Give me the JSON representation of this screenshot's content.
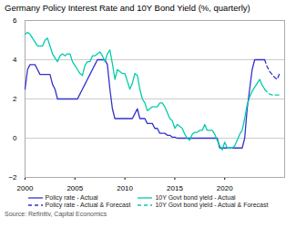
{
  "chart_data": {
    "type": "line",
    "title": "Germany Policy Interest Rate and 10Y Bond Yield (%, quarterly)",
    "source": "Source: Refinitiv, Capital Economics",
    "xlim": [
      2000,
      2026
    ],
    "xticks": [
      2000,
      2005,
      2010,
      2015,
      2020
    ],
    "ylim": [
      -2,
      6
    ],
    "yticks": [
      -2,
      0,
      2,
      4,
      6
    ],
    "grid": "y",
    "legend": "bottom",
    "series": [
      {
        "name": "Policy rate - Actual",
        "color": "#3333cc",
        "line_style": "solid",
        "x": [
          2000,
          2000.25,
          2000.5,
          2000.75,
          2001,
          2001.25,
          2001.5,
          2001.75,
          2002,
          2002.25,
          2002.5,
          2002.75,
          2003,
          2003.25,
          2003.5,
          2003.75,
          2004,
          2004.25,
          2004.5,
          2004.75,
          2005,
          2005.25,
          2005.5,
          2005.75,
          2006,
          2006.25,
          2006.5,
          2006.75,
          2007,
          2007.25,
          2007.5,
          2007.75,
          2008,
          2008.25,
          2008.5,
          2008.75,
          2009,
          2009.25,
          2009.5,
          2009.75,
          2010,
          2010.25,
          2010.5,
          2010.75,
          2011,
          2011.25,
          2011.5,
          2011.75,
          2012,
          2012.25,
          2012.5,
          2012.75,
          2013,
          2013.25,
          2013.5,
          2013.75,
          2014,
          2014.25,
          2014.5,
          2014.75,
          2015,
          2015.25,
          2015.5,
          2015.75,
          2016,
          2016.25,
          2016.5,
          2016.75,
          2017,
          2017.25,
          2017.5,
          2017.75,
          2018,
          2018.25,
          2018.5,
          2018.75,
          2019,
          2019.25,
          2019.5,
          2019.75,
          2020,
          2020.25,
          2020.5,
          2020.75,
          2021,
          2021.25,
          2021.5,
          2021.75,
          2022,
          2022.25,
          2022.5,
          2022.75,
          2023,
          2023.25,
          2023.5,
          2023.75,
          2024
        ],
        "values": [
          2.5,
          3.5,
          3.75,
          3.75,
          3.75,
          3.5,
          3.25,
          3.25,
          3.25,
          3.25,
          3.25,
          2.75,
          2.5,
          2.0,
          2.0,
          2.0,
          2.0,
          2.0,
          2.0,
          2.0,
          2.0,
          2.0,
          2.25,
          2.5,
          2.75,
          3.0,
          3.25,
          3.5,
          3.75,
          4.0,
          4.0,
          4.0,
          4.0,
          3.75,
          2.5,
          1.5,
          1.0,
          1.0,
          1.0,
          1.0,
          1.0,
          1.0,
          1.0,
          1.0,
          1.25,
          1.5,
          1.0,
          1.0,
          1.0,
          0.75,
          0.75,
          0.75,
          0.5,
          0.5,
          0.25,
          0.25,
          0.25,
          0.15,
          0.15,
          0.05,
          0.05,
          0.0,
          0.0,
          0.0,
          0.0,
          0.0,
          0.0,
          0.0,
          0.0,
          0.0,
          0.0,
          0.0,
          0.0,
          0.0,
          0.0,
          0.0,
          0.0,
          0.0,
          -0.5,
          -0.5,
          -0.5,
          -0.5,
          -0.5,
          -0.5,
          -0.5,
          -0.5,
          -0.5,
          -0.5,
          0.0,
          1.5,
          2.5,
          3.5,
          4.0,
          4.0,
          4.0,
          4.0,
          4.0
        ]
      },
      {
        "name": "Policy rate - Actual & Forecast",
        "color": "#3333cc",
        "line_style": "dashed",
        "x": [
          2024,
          2024.25,
          2024.5,
          2024.75,
          2025,
          2025.25,
          2025.5
        ],
        "values": [
          4.0,
          3.65,
          3.4,
          3.25,
          3.1,
          3.0,
          3.3
        ]
      },
      {
        "name": "10Y Govt bond yield - Actual",
        "color": "#00ccaa",
        "line_style": "solid",
        "x": [
          2000,
          2000.25,
          2000.5,
          2000.75,
          2001,
          2001.25,
          2001.5,
          2001.75,
          2002,
          2002.25,
          2002.5,
          2002.75,
          2003,
          2003.25,
          2003.5,
          2003.75,
          2004,
          2004.25,
          2004.5,
          2004.75,
          2005,
          2005.25,
          2005.5,
          2005.75,
          2006,
          2006.25,
          2006.5,
          2006.75,
          2007,
          2007.25,
          2007.5,
          2007.75,
          2008,
          2008.25,
          2008.5,
          2008.75,
          2009,
          2009.25,
          2009.5,
          2009.75,
          2010,
          2010.25,
          2010.5,
          2010.75,
          2011,
          2011.25,
          2011.5,
          2011.75,
          2012,
          2012.25,
          2012.5,
          2012.75,
          2013,
          2013.25,
          2013.5,
          2013.75,
          2014,
          2014.25,
          2014.5,
          2014.75,
          2015,
          2015.25,
          2015.5,
          2015.75,
          2016,
          2016.25,
          2016.5,
          2016.75,
          2017,
          2017.25,
          2017.5,
          2017.75,
          2018,
          2018.25,
          2018.5,
          2018.75,
          2019,
          2019.25,
          2019.5,
          2019.75,
          2020,
          2020.25,
          2020.5,
          2020.75,
          2021,
          2021.25,
          2021.5,
          2021.75,
          2022,
          2022.25,
          2022.5,
          2022.75,
          2023,
          2023.25,
          2023.5,
          2023.75,
          2024
        ],
        "values": [
          5.3,
          5.4,
          5.3,
          5.1,
          4.9,
          4.7,
          4.7,
          4.7,
          5.0,
          5.1,
          4.7,
          4.3,
          4.1,
          3.9,
          4.2,
          4.3,
          4.2,
          4.3,
          4.3,
          3.9,
          3.7,
          3.5,
          3.3,
          3.2,
          3.7,
          3.9,
          3.9,
          4.2,
          4.2,
          4.3,
          4.4,
          4.2,
          3.9,
          4.3,
          4.5,
          3.8,
          3.0,
          3.5,
          3.4,
          3.3,
          3.3,
          2.9,
          2.5,
          2.8,
          3.3,
          3.2,
          2.5,
          2.0,
          1.8,
          1.4,
          1.5,
          1.6,
          1.6,
          1.6,
          1.8,
          1.8,
          1.6,
          1.3,
          1.0,
          0.9,
          0.5,
          0.7,
          0.6,
          0.5,
          0.2,
          0.0,
          -0.1,
          0.2,
          0.3,
          0.3,
          0.4,
          0.4,
          0.7,
          0.4,
          0.4,
          0.4,
          0.2,
          -0.1,
          -0.4,
          -0.6,
          -0.2,
          -0.5,
          -0.5,
          -0.5,
          -0.4,
          -0.1,
          0.2,
          0.4,
          1.0,
          1.7,
          2.1,
          2.4,
          2.6,
          2.8,
          3.0,
          2.7,
          2.5
        ]
      },
      {
        "name": "10Y Govt bond yield - Actual & Forecast",
        "color": "#00ccaa",
        "line_style": "dashed",
        "x": [
          2024,
          2024.25,
          2024.5,
          2024.75,
          2025,
          2025.25,
          2025.5
        ],
        "values": [
          2.5,
          2.35,
          2.25,
          2.2,
          2.2,
          2.2,
          2.2
        ]
      }
    ]
  }
}
